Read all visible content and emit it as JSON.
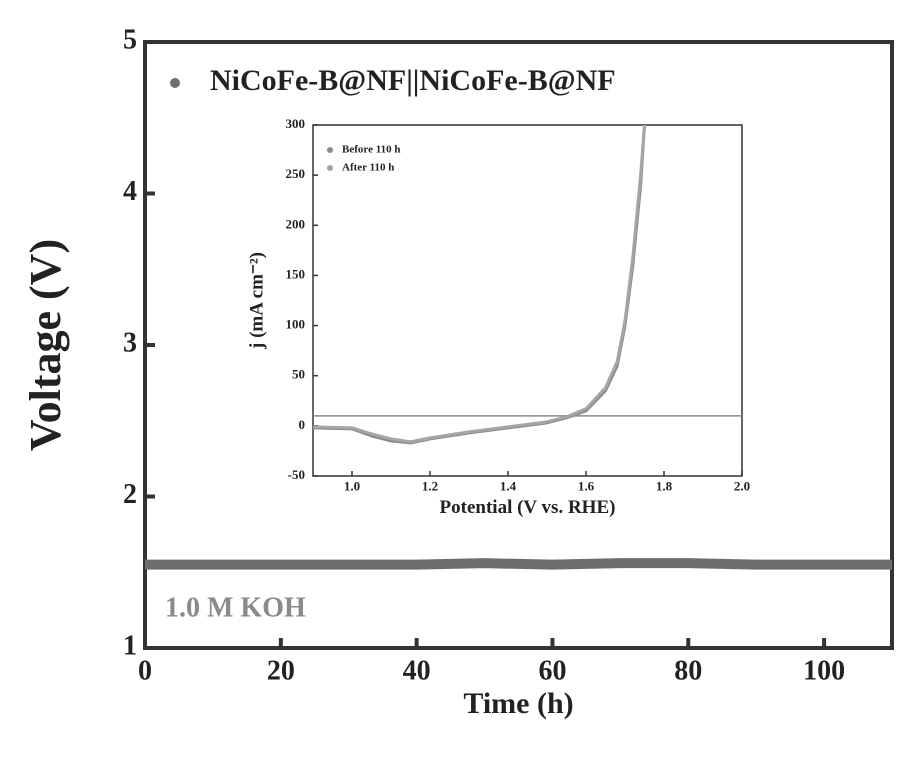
{
  "chart_data": [
    {
      "type": "line",
      "xlabel": "Time (h)",
      "ylabel": "Voltage (V)",
      "xlim": [
        0,
        110
      ],
      "ylim": [
        1,
        5
      ],
      "xticks": [
        0,
        20,
        40,
        60,
        80,
        100
      ],
      "yticks": [
        1,
        2,
        3,
        4,
        5
      ],
      "annotation": "1.0 M KOH",
      "legend": "upper left",
      "series": [
        {
          "name": "NiCoFe-B@NF||NiCoFe-B@NF",
          "color": "#6e6e6e",
          "x": [
            0,
            10,
            20,
            30,
            40,
            50,
            60,
            70,
            80,
            90,
            100,
            110
          ],
          "values": [
            1.55,
            1.55,
            1.55,
            1.55,
            1.55,
            1.56,
            1.55,
            1.56,
            1.56,
            1.55,
            1.55,
            1.55
          ]
        }
      ]
    },
    {
      "type": "line",
      "xlabel": "Potential (V vs. RHE)",
      "ylabel": "j (mA cm⁻²)",
      "xlim": [
        0.9,
        2.0
      ],
      "ylim": [
        -50,
        300
      ],
      "xticks": [
        {
          "value": 1,
          "label": "1.0"
        },
        {
          "value": 1.2,
          "label": "1.2"
        },
        {
          "value": 1.4,
          "label": "1.4"
        },
        {
          "value": 1.6,
          "label": "1.6"
        },
        {
          "value": 1.8,
          "label": "1.8"
        },
        {
          "value": 2,
          "label": "2.0"
        }
      ],
      "yticks": [
        -50,
        0,
        50,
        100,
        150,
        200,
        250,
        300
      ],
      "reference_line": 10,
      "legend": "upper left",
      "series": [
        {
          "name": "Before 110 h",
          "color": "#8a8a8a",
          "x": [
            0.9,
            1.0,
            1.05,
            1.1,
            1.15,
            1.2,
            1.3,
            1.4,
            1.5,
            1.55,
            1.6,
            1.65,
            1.68,
            1.7,
            1.72,
            1.74,
            1.75
          ],
          "values": [
            -2,
            -3,
            -10,
            -15,
            -17,
            -13,
            -7,
            -2,
            3,
            8,
            15,
            35,
            60,
            100,
            160,
            240,
            300
          ]
        },
        {
          "name": "After 110 h",
          "color": "#a5a5a5",
          "x": [
            0.9,
            1.0,
            1.05,
            1.1,
            1.15,
            1.2,
            1.3,
            1.4,
            1.5,
            1.55,
            1.6,
            1.65,
            1.68,
            1.7,
            1.72,
            1.74,
            1.75
          ],
          "values": [
            -1,
            -2,
            -8,
            -13,
            -16,
            -12,
            -6,
            -1,
            4,
            9,
            17,
            38,
            64,
            105,
            168,
            250,
            300
          ]
        }
      ]
    }
  ]
}
